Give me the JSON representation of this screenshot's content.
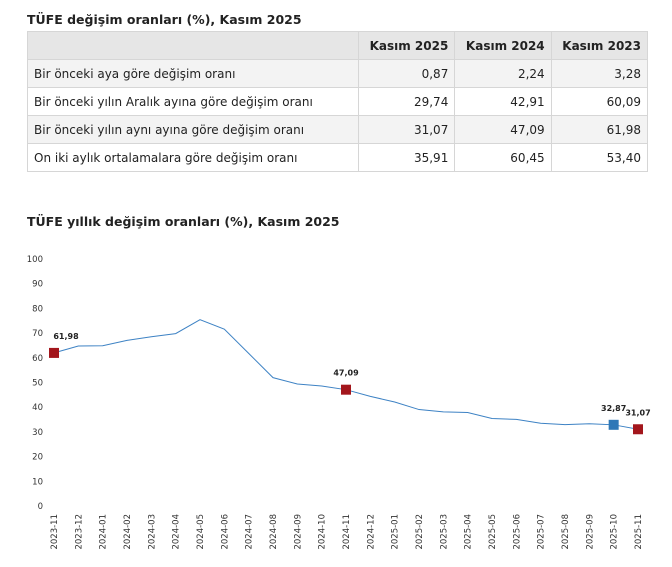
{
  "table": {
    "title": "TÜFE değişim oranları (%), Kasım 2025",
    "columns": [
      "Kasım 2025",
      "Kasım 2024",
      "Kasım 2023"
    ],
    "rows": [
      {
        "label": "Bir önceki aya göre değişim oranı",
        "values": [
          "0,87",
          "2,24",
          "3,28"
        ]
      },
      {
        "label": "Bir önceki yılın Aralık ayına göre değişim oranı",
        "values": [
          "29,74",
          "42,91",
          "60,09"
        ]
      },
      {
        "label": "Bir önceki yılın aynı ayına göre değişim oranı",
        "values": [
          "31,07",
          "47,09",
          "61,98"
        ]
      },
      {
        "label": "On iki aylık ortalamalara göre değişim oranı",
        "values": [
          "35,91",
          "60,45",
          "53,40"
        ]
      }
    ]
  },
  "chart_data": {
    "type": "line",
    "title": "TÜFE yıllık değişim oranları (%), Kasım 2025",
    "categories": [
      "2023-11",
      "2023-12",
      "2024-01",
      "2024-02",
      "2024-03",
      "2024-04",
      "2024-05",
      "2024-06",
      "2024-07",
      "2024-08",
      "2024-09",
      "2024-10",
      "2024-11",
      "2024-12",
      "2025-01",
      "2025-02",
      "2025-03",
      "2025-04",
      "2025-05",
      "2025-06",
      "2025-07",
      "2025-08",
      "2025-09",
      "2025-10",
      "2025-11"
    ],
    "values": [
      61.98,
      64.77,
      64.86,
      67.07,
      68.5,
      69.8,
      75.45,
      71.6,
      61.78,
      51.97,
      49.38,
      48.58,
      47.09,
      44.38,
      42.12,
      39.05,
      38.1,
      37.86,
      35.41,
      35.05,
      33.52,
      32.95,
      33.29,
      32.87,
      31.07
    ],
    "value_labels": [
      "61,98",
      null,
      null,
      null,
      null,
      null,
      null,
      null,
      null,
      null,
      null,
      null,
      "47,09",
      null,
      null,
      null,
      null,
      null,
      null,
      null,
      null,
      null,
      null,
      "32,87",
      "31,07"
    ],
    "marker_colors": [
      "#a3161c",
      null,
      null,
      null,
      null,
      null,
      null,
      null,
      null,
      null,
      null,
      null,
      "#a3161c",
      null,
      null,
      null,
      null,
      null,
      null,
      null,
      null,
      null,
      null,
      "#2f78b7",
      "#a3161c"
    ],
    "color": "#3d82c4",
    "ylim": [
      0,
      100
    ],
    "yticks": [
      0,
      10,
      20,
      30,
      40,
      50,
      60,
      70,
      80,
      90,
      100
    ],
    "grid": false
  }
}
